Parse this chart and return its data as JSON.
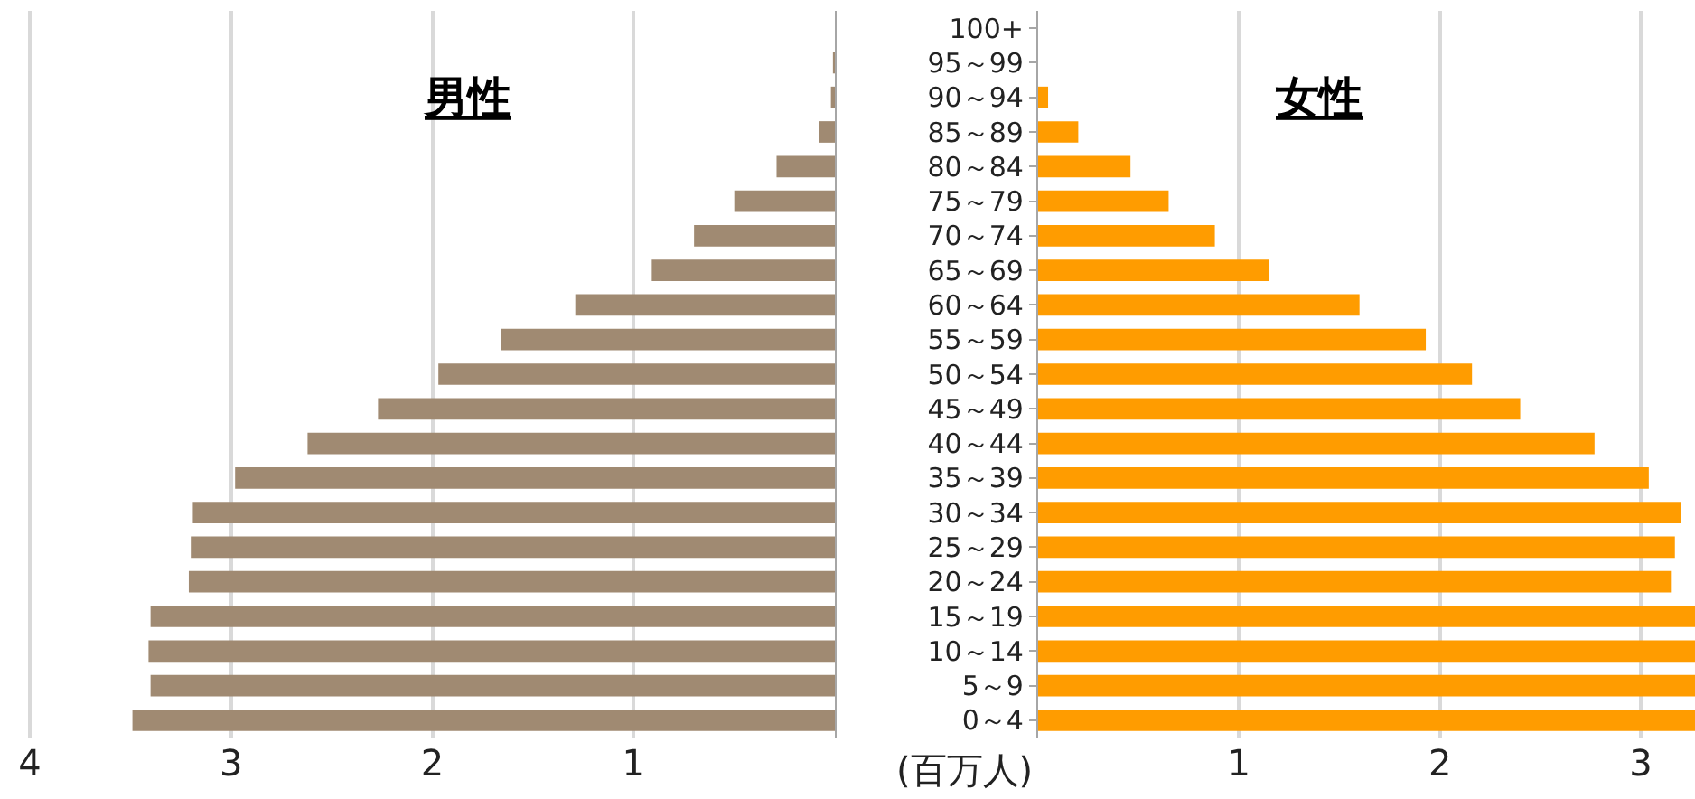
{
  "chart_data": [
    {
      "type": "bar",
      "orientation": "horizontal",
      "categories": [
        null,
        null,
        null,
        null,
        null,
        null,
        null,
        null,
        null,
        null,
        null,
        null,
        null,
        null,
        null,
        null,
        null,
        null,
        null,
        null,
        null
      ],
      "series": [
        {
          "name": "男性",
          "color": "#a08a72",
          "values": [
            0.0,
            0.01,
            0.02,
            0.08,
            0.29,
            0.5,
            0.7,
            0.91,
            1.29,
            1.66,
            1.97,
            2.27,
            2.62,
            2.98,
            3.19,
            3.2,
            3.21,
            3.4,
            3.41,
            3.4,
            3.49
          ]
        }
      ],
      "xlim": [
        4.13,
        0
      ],
      "xticks": [
        4,
        3,
        2,
        1
      ],
      "grid": "x",
      "tick_labels": "x"
    },
    {
      "type": "bar",
      "orientation": "horizontal",
      "categories": [
        "100+",
        "95～99",
        "90～94",
        "85～89",
        "80～84",
        "75～79",
        "70～74",
        "65～69",
        "60～64",
        "55～59",
        "50～54",
        "45～49",
        "40～44",
        "35～39",
        "30～34",
        "25～29",
        "20～24",
        "15～19",
        "10～14",
        "5～9",
        "0～4"
      ],
      "series": [
        {
          "name": "女性",
          "color": "#ff9c00",
          "values": [
            0.0,
            0.0,
            0.05,
            0.2,
            0.46,
            0.65,
            0.88,
            1.15,
            1.6,
            1.93,
            2.16,
            2.4,
            2.77,
            3.04,
            3.2,
            3.17,
            3.15,
            3.27,
            3.27,
            3.27,
            3.27
          ]
        }
      ],
      "xlim": [
        0,
        3.27
      ],
      "xticks": [
        1,
        2,
        3
      ],
      "xlabel": "(百万人)",
      "grid": "x"
    }
  ]
}
